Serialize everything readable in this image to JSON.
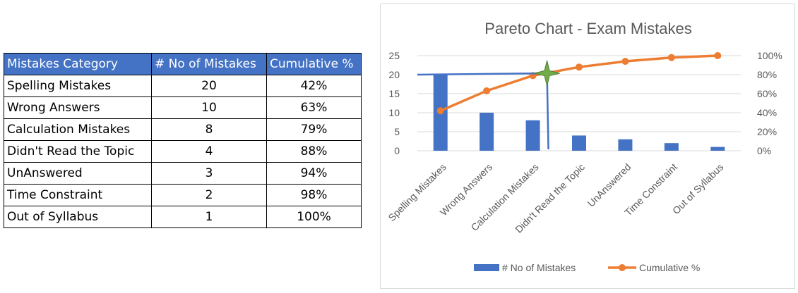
{
  "table": {
    "headers": [
      "Mistakes Category",
      "# No of Mistakes",
      "Cumulative %"
    ],
    "rows": [
      [
        "Spelling Mistakes",
        "20",
        "42%"
      ],
      [
        "Wrong Answers",
        "10",
        "63%"
      ],
      [
        "Calculation Mistakes",
        "8",
        "79%"
      ],
      [
        "Didn't Read the Topic",
        "4",
        "88%"
      ],
      [
        "UnAnswered",
        "3",
        "94%"
      ],
      [
        "Time Constraint",
        "2",
        "98%"
      ],
      [
        "Out of Syllabus",
        "1",
        "100%"
      ]
    ]
  },
  "chart_data": {
    "type": "bar",
    "title": "Pareto Chart - Exam Mistakes",
    "categories": [
      "Spelling Mistakes",
      "Wrong Answers",
      "Calculation Mistakes",
      "Didn't Read the Topic",
      "UnAnswered",
      "Time Constraint",
      "Out of Syllabus"
    ],
    "series": [
      {
        "name": "# No of Mistakes",
        "type": "bar",
        "axis": "left",
        "values": [
          20,
          10,
          8,
          4,
          3,
          2,
          1
        ],
        "color": "#4472c4"
      },
      {
        "name": "Cumulative %",
        "type": "line",
        "axis": "right",
        "values": [
          42,
          63,
          79,
          88,
          94,
          98,
          100
        ],
        "color": "#ed7d31"
      }
    ],
    "y_left": {
      "min": 0,
      "max": 25,
      "ticks": [
        0,
        5,
        10,
        15,
        20,
        25
      ]
    },
    "y_right": {
      "min": 0,
      "max": 100,
      "ticks": [
        "0%",
        "20%",
        "40%",
        "60%",
        "80%",
        "100%"
      ]
    },
    "grid": true,
    "legend": "bottom",
    "annotation": {
      "type": "80-percent-cutoff",
      "marker_color": "#70ad47",
      "line_color": "#4472c4",
      "cutoff_value": 80
    }
  }
}
